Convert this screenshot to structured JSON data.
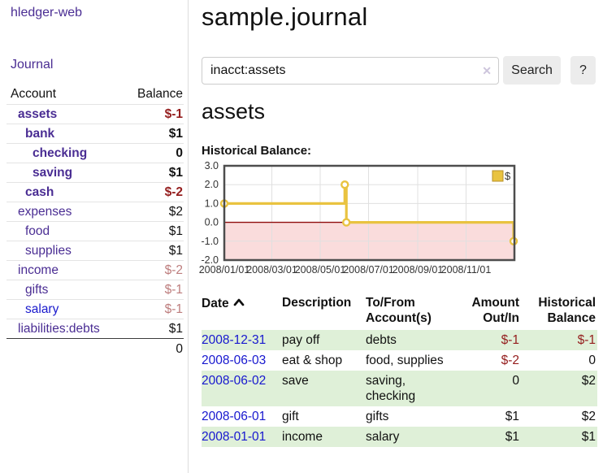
{
  "app": {
    "title": "hledger-web"
  },
  "sidebar": {
    "journal_link": "Journal",
    "accounts_header": {
      "account": "Account",
      "balance": "Balance"
    },
    "accounts": [
      {
        "name": "assets",
        "depth": 1,
        "emphasized": true,
        "balance": "$-1",
        "balance_tone": "negative-strong",
        "link_tone": "purple"
      },
      {
        "name": "bank",
        "depth": 2,
        "emphasized": true,
        "balance": "$1",
        "balance_tone": "normal",
        "link_tone": "purple"
      },
      {
        "name": "checking",
        "depth": 3,
        "emphasized": true,
        "balance": "0",
        "balance_tone": "normal",
        "link_tone": "purple"
      },
      {
        "name": "saving",
        "depth": 3,
        "emphasized": true,
        "balance": "$1",
        "balance_tone": "normal",
        "link_tone": "purple"
      },
      {
        "name": "cash",
        "depth": 2,
        "emphasized": true,
        "balance": "$-2",
        "balance_tone": "negative-strong",
        "link_tone": "purple"
      },
      {
        "name": "expenses",
        "depth": 1,
        "emphasized": false,
        "balance": "$2",
        "balance_tone": "normal",
        "link_tone": "purple"
      },
      {
        "name": "food",
        "depth": 2,
        "emphasized": false,
        "balance": "$1",
        "balance_tone": "normal",
        "link_tone": "purple"
      },
      {
        "name": "supplies",
        "depth": 2,
        "emphasized": false,
        "balance": "$1",
        "balance_tone": "normal",
        "link_tone": "purple"
      },
      {
        "name": "income",
        "depth": 1,
        "emphasized": false,
        "balance": "$-2",
        "balance_tone": "negative-muted",
        "link_tone": "purple"
      },
      {
        "name": "gifts",
        "depth": 2,
        "emphasized": false,
        "balance": "$-1",
        "balance_tone": "negative-muted",
        "link_tone": "purple"
      },
      {
        "name": "salary",
        "depth": 2,
        "emphasized": false,
        "balance": "$-1",
        "balance_tone": "negative-muted",
        "link_tone": "blue"
      },
      {
        "name": "liabilities:debts",
        "depth": 1,
        "emphasized": false,
        "balance": "$1",
        "balance_tone": "normal",
        "link_tone": "purple"
      }
    ],
    "total": "0"
  },
  "main": {
    "title": "sample.journal",
    "search": {
      "query": "inacct:assets",
      "clear_icon": "✕",
      "search_button": "Search",
      "help_button": "?"
    },
    "account_heading": "assets",
    "chart_label": "Historical Balance:"
  },
  "chart_data": {
    "type": "line",
    "step": true,
    "title": "Historical Balance",
    "series": [
      {
        "name": "$",
        "color": "#e9c340",
        "points": [
          [
            "2008-01-01",
            1
          ],
          [
            "2008-06-01",
            2
          ],
          [
            "2008-06-03",
            0
          ],
          [
            "2008-12-31",
            -1
          ]
        ]
      }
    ],
    "xlim": [
      "2008-01-01",
      "2009-01-01"
    ],
    "ylim": [
      -2,
      3
    ],
    "yticks": [
      "3.0",
      "2.0",
      "1.0",
      "0.0",
      "-1.0",
      "-2.0"
    ],
    "xticks": [
      {
        "date": "2008-01-01",
        "label": "2008/01/01"
      },
      {
        "date": "2008-03-01",
        "label": "2008/03/01"
      },
      {
        "date": "2008-05-01",
        "label": "2008/05/01"
      },
      {
        "date": "2008-07-01",
        "label": "2008/07/01"
      },
      {
        "date": "2008-09-01",
        "label": "2008/09/01"
      },
      {
        "date": "2008-11-01",
        "label": "2008/11/01"
      }
    ],
    "grid": true,
    "legend_position": "top-right",
    "negative_region_fill": "#fadcdc",
    "zero_line_color": "#8f0d0d",
    "marker_fill": "#ffffff",
    "border_color": "#4d4d4d"
  },
  "transactions": {
    "columns": [
      {
        "label": "Date",
        "sortable": true,
        "sort_icon": "chevron-up",
        "align": "left"
      },
      {
        "label": "Description",
        "align": "left"
      },
      {
        "label": "To/From Account(s)",
        "align": "left"
      },
      {
        "label": "Amount Out/In",
        "align": "right"
      },
      {
        "label": "Historical Balance",
        "align": "right"
      }
    ],
    "rows": [
      {
        "date": "2008-12-31",
        "description": "pay off",
        "accounts": "debts",
        "amount": "$-1",
        "amount_negative": true,
        "balance": "$-1",
        "balance_negative": true,
        "highlighted": true
      },
      {
        "date": "2008-06-03",
        "description": "eat & shop",
        "accounts": "food, supplies",
        "amount": "$-2",
        "amount_negative": true,
        "balance": "0",
        "balance_negative": false,
        "highlighted": false
      },
      {
        "date": "2008-06-02",
        "description": "save",
        "accounts": "saving, checking",
        "amount": "0",
        "amount_negative": false,
        "balance": "$2",
        "balance_negative": false,
        "highlighted": true
      },
      {
        "date": "2008-06-01",
        "description": "gift",
        "accounts": "gifts",
        "amount": "$1",
        "amount_negative": false,
        "balance": "$2",
        "balance_negative": false,
        "highlighted": false
      },
      {
        "date": "2008-01-01",
        "description": "income",
        "accounts": "salary",
        "amount": "$1",
        "amount_negative": false,
        "balance": "$1",
        "balance_negative": false,
        "highlighted": true
      }
    ]
  },
  "colors": {
    "link_purple": "#4a2d93",
    "link_blue": "#1a1acd",
    "negative_strong": "#941d1d",
    "negative_muted": "#bd7d7d",
    "row_highlight_green": "#dff0d8",
    "chart_series_yellow": "#e9c340",
    "chart_negative_region": "#fadcdc",
    "chart_zero_line": "#8f0d0d"
  }
}
